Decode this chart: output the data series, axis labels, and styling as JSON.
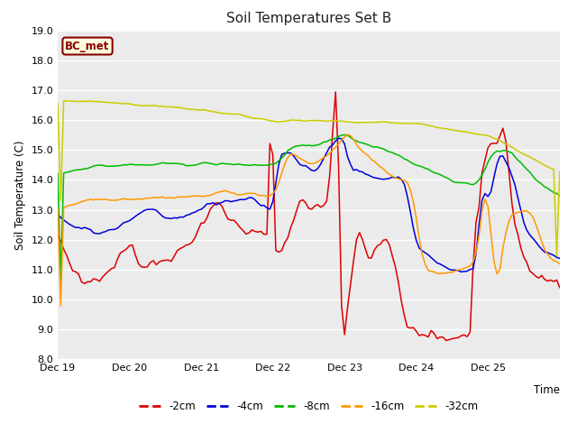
{
  "title": "Soil Temperatures Set B",
  "xlabel": "Time",
  "ylabel": "Soil Temperature (C)",
  "ylim": [
    8.0,
    19.0
  ],
  "yticks": [
    8.0,
    9.0,
    10.0,
    11.0,
    12.0,
    13.0,
    14.0,
    15.0,
    16.0,
    17.0,
    18.0,
    19.0
  ],
  "fig_bg": "#ffffff",
  "plot_bg": "#ebebeb",
  "grid_color": "#ffffff",
  "legend_label": "BC_met",
  "legend_box_facecolor": "#ffffe0",
  "legend_box_edgecolor": "#8B0000",
  "series_colors": {
    "-2cm": "#dd0000",
    "-4cm": "#0000dd",
    "-8cm": "#00bb00",
    "-16cm": "#ff9900",
    "-32cm": "#cccc00"
  },
  "n_points": 169,
  "x_tick_labels": [
    "Dec 19",
    "Dec 20",
    "Dec 21",
    "Dec 22",
    "Dec 23",
    "Dec 24",
    "Dec 25"
  ],
  "x_tick_positions": [
    0,
    24,
    48,
    72,
    96,
    120,
    144
  ]
}
